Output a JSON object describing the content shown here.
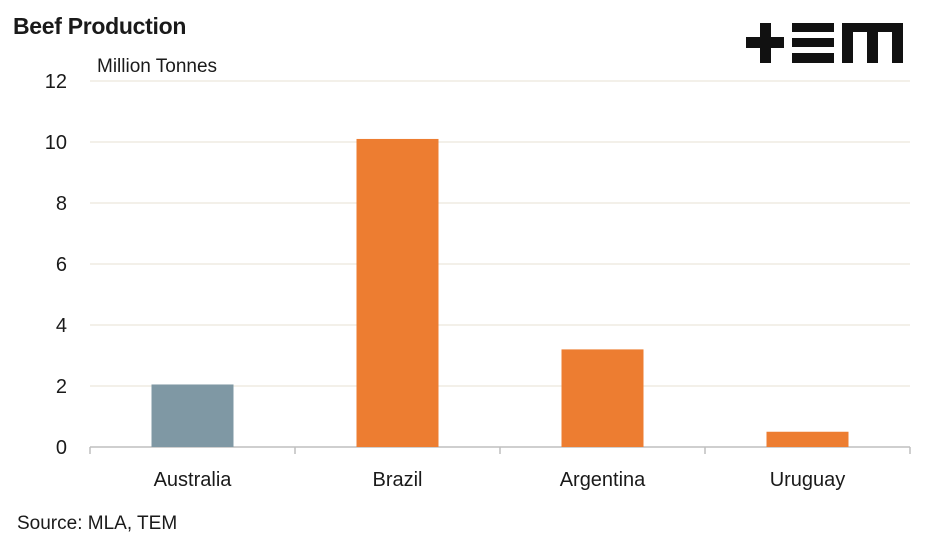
{
  "chart_data": {
    "type": "bar",
    "title": "Beef Production",
    "ylabel": "Million Tonnes",
    "xlabel": "",
    "categories": [
      "Australia",
      "Brazil",
      "Argentina",
      "Uruguay"
    ],
    "values": [
      2.05,
      10.1,
      3.2,
      0.5
    ],
    "bar_colors": [
      "#7F98A4",
      "#ED7D31",
      "#ED7D31",
      "#ED7D31"
    ],
    "ylim": [
      0,
      12
    ],
    "yticks": [
      "0",
      "2",
      "4",
      "6",
      "8",
      "10",
      "12"
    ],
    "grid": true,
    "legend": "none"
  },
  "source": "Source: MLA, TEM",
  "logo": {
    "icon": "tem-logo",
    "color": "#111111"
  },
  "colors": {
    "grid": "#e7e2d3",
    "axis": "#bfbfbf",
    "text": "#1a1a1a"
  }
}
